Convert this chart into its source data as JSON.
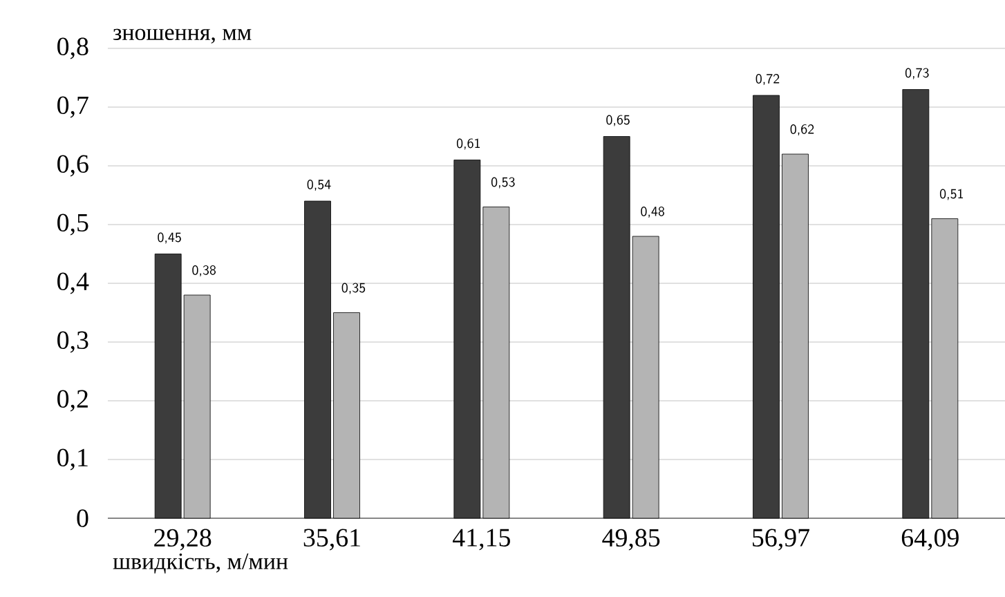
{
  "chart_data": {
    "type": "bar",
    "ylabel": "зношення, мм",
    "xlabel": "швидкість, м/мин",
    "categories": [
      "29,28",
      "35,61",
      "41,15",
      "49,85",
      "56,97",
      "64,09"
    ],
    "series": [
      {
        "color": "#3c3c3c",
        "values": [
          0.45,
          0.54,
          0.61,
          0.65,
          0.72,
          0.73
        ],
        "value_labels": [
          "0,45",
          "0,54",
          "0,61",
          "0,65",
          "0,72",
          "0,73"
        ]
      },
      {
        "color": "#b4b4b4",
        "values": [
          0.38,
          0.35,
          0.53,
          0.48,
          0.62,
          0.51
        ],
        "value_labels": [
          "0,38",
          "0,35",
          "0,53",
          "0,48",
          "0,62",
          "0,51"
        ]
      }
    ],
    "ylim": [
      0,
      0.8
    ],
    "yticks": [
      {
        "value": 0,
        "label": "0"
      },
      {
        "value": 0.1,
        "label": "0,1"
      },
      {
        "value": 0.2,
        "label": "0,2"
      },
      {
        "value": 0.3,
        "label": "0,3"
      },
      {
        "value": 0.4,
        "label": "0,4"
      },
      {
        "value": 0.5,
        "label": "0,5"
      },
      {
        "value": 0.6,
        "label": "0,6"
      },
      {
        "value": 0.7,
        "label": "0,7"
      },
      {
        "value": 0.8,
        "label": "0,8"
      }
    ],
    "grid": "y"
  }
}
